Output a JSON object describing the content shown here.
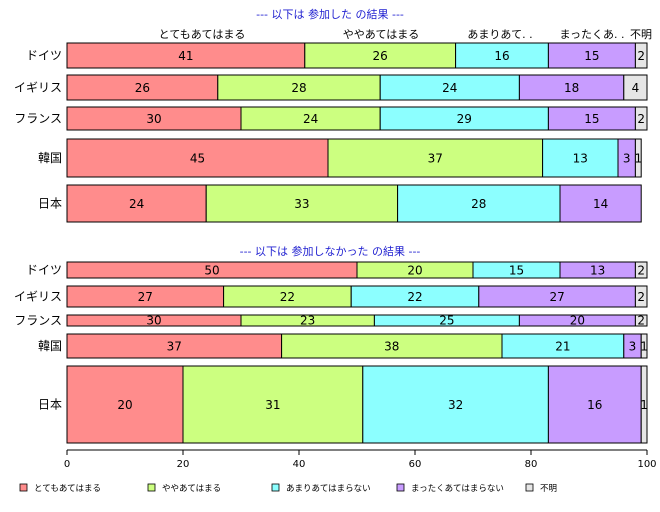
{
  "chart_data": {
    "type": "bar",
    "orientation": "horizontal",
    "stacked": true,
    "categories_legend": [
      "とてもあてはまる",
      "ややあてはまる",
      "あまりあてはまらない",
      "まったくあてはまらない",
      "不明"
    ],
    "colors": [
      "#ff8c8c",
      "#ccff80",
      "#8cffff",
      "#c89cff",
      "#e6e6e6"
    ],
    "xlim": [
      0,
      100
    ],
    "x_ticks": [
      "0",
      "20",
      "40",
      "60",
      "80",
      "100"
    ],
    "grid": false,
    "legend_position": "bottom",
    "panels": [
      {
        "title": "--- 以下は 参加した の結果 ---",
        "column_headers": [
          "とてもあてはまる",
          "ややあてはまる",
          "あまりあて. .",
          "まったくあ. .",
          "不明"
        ],
        "rows": [
          {
            "country": "ドイツ",
            "values": [
              41,
              26,
              16,
              15,
              2
            ]
          },
          {
            "country": "イギリス",
            "values": [
              26,
              28,
              24,
              18,
              4
            ]
          },
          {
            "country": "フランス",
            "values": [
              30,
              24,
              29,
              15,
              2
            ]
          },
          {
            "country": "韓国",
            "values": [
              45,
              37,
              13,
              3,
              1
            ]
          },
          {
            "country": "日本",
            "values": [
              24,
              33,
              28,
              14,
              0
            ]
          }
        ]
      },
      {
        "title": "--- 以下は 参加しなかった の結果 ---",
        "rows": [
          {
            "country": "ドイツ",
            "values": [
              50,
              20,
              15,
              13,
              2
            ]
          },
          {
            "country": "イギリス",
            "values": [
              27,
              22,
              22,
              27,
              2
            ]
          },
          {
            "country": "フランス",
            "values": [
              30,
              23,
              25,
              20,
              2
            ]
          },
          {
            "country": "韓国",
            "values": [
              37,
              38,
              21,
              3,
              1
            ]
          },
          {
            "country": "日本",
            "values": [
              20,
              31,
              32,
              16,
              1
            ]
          }
        ]
      }
    ]
  }
}
